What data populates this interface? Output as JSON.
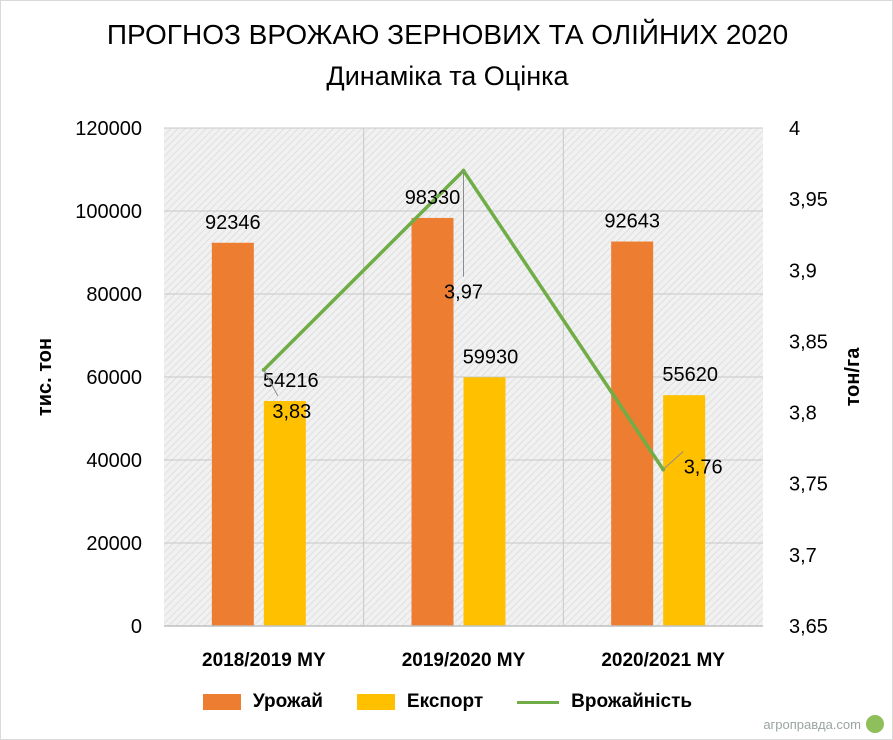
{
  "watermark": "агроправда.com",
  "chart_data": {
    "type": "bar+line",
    "title": "ПРОГНОЗ ВРОЖАЮ ЗЕРНОВИХ ТА ОЛІЙНИХ 2020",
    "subtitle": "Динаміка та Оцінка",
    "categories": [
      "2018/2019 MY",
      "2019/2020 MY",
      "2020/2021 MY"
    ],
    "ylabel": "тис. тон",
    "y2label": "тон/га",
    "ylim": [
      0,
      120000
    ],
    "y2lim": [
      3.65,
      4
    ],
    "y_ticks": [
      "0",
      "20000",
      "40000",
      "60000",
      "80000",
      "100000",
      "120000"
    ],
    "y2_ticks": [
      "3,65",
      "3,7",
      "3,75",
      "3,8",
      "3,85",
      "3,9",
      "3,95",
      "4"
    ],
    "grid": true,
    "legend_position": "bottom",
    "series": [
      {
        "name": "Урожай",
        "kind": "bar",
        "axis": "left",
        "color": "#ED7D31",
        "values": [
          92346,
          98330,
          92643
        ],
        "labels": [
          "92346",
          "98330",
          "92643"
        ]
      },
      {
        "name": "Експорт",
        "kind": "bar",
        "axis": "left",
        "color": "#FFC000",
        "values": [
          54216,
          59930,
          55620
        ],
        "labels": [
          "54216",
          "59930",
          "55620"
        ]
      },
      {
        "name": "Врожайність",
        "kind": "line",
        "axis": "right",
        "color": "#70AD47",
        "values": [
          3.83,
          3.97,
          3.76
        ],
        "labels": [
          "3,83",
          "3,97",
          "3,76"
        ]
      }
    ]
  }
}
